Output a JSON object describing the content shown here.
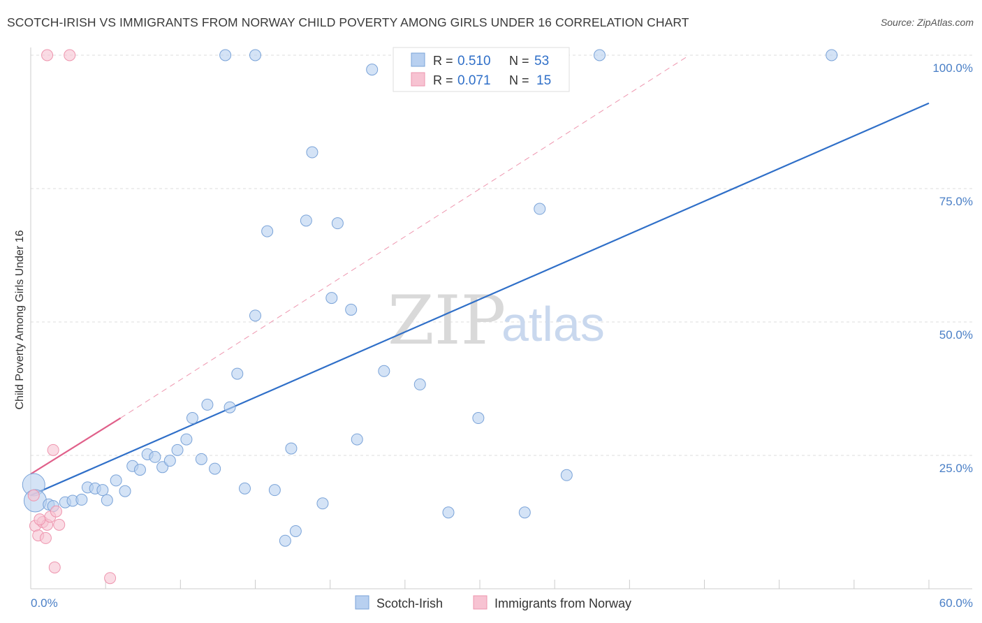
{
  "header": {
    "title": "SCOTCH-IRISH VS IMMIGRANTS FROM NORWAY CHILD POVERTY AMONG GIRLS UNDER 16 CORRELATION CHART",
    "source": "Source: ZipAtlas.com"
  },
  "watermark": {
    "zip": "ZIP",
    "atlas": "atlas"
  },
  "legend": {
    "r_label": "R =",
    "n_label": "N =",
    "rows": [
      {
        "r": "0.510",
        "n": "53"
      },
      {
        "r": "0.071",
        "n": "15"
      }
    ]
  },
  "bottom_legend": {
    "series1": "Scotch-Irish",
    "series2": "Immigrants from Norway"
  },
  "colors": {
    "blue": "#2f6fc8",
    "blue_fill": "#b8d0f0",
    "blue_stroke": "#7aa3d8",
    "pink": "#e0608a",
    "pink_fill": "#f7c3d2",
    "pink_stroke": "#ee95ae"
  },
  "chart_data": {
    "type": "scatter",
    "title": "SCOTCH-IRISH VS IMMIGRANTS FROM NORWAY CHILD POVERTY AMONG GIRLS UNDER 16 CORRELATION CHART",
    "xlabel": "",
    "ylabel": "Child Poverty Among Girls Under 16",
    "xlim": [
      0,
      60
    ],
    "ylim": [
      0,
      100
    ],
    "x_tick_labels": [
      "0.0%",
      "60.0%"
    ],
    "y_ticks": [
      25,
      50,
      75,
      100
    ],
    "y_tick_labels": [
      "25.0%",
      "50.0%",
      "75.0%",
      "100.0%"
    ],
    "series": [
      {
        "name": "Scotch-Irish",
        "r": 0.51,
        "n": 53,
        "points": [
          [
            0.2,
            19.5
          ],
          [
            0.3,
            16.5
          ],
          [
            1.2,
            15.8
          ],
          [
            2.3,
            16.2
          ],
          [
            2.8,
            16.5
          ],
          [
            3.4,
            16.7
          ],
          [
            3.8,
            19
          ],
          [
            4.3,
            18.8
          ],
          [
            4.8,
            18.5
          ],
          [
            5.1,
            16.6
          ],
          [
            5.7,
            20.3
          ],
          [
            6.3,
            18.3
          ],
          [
            6.8,
            23
          ],
          [
            7.3,
            22.3
          ],
          [
            7.8,
            25.2
          ],
          [
            8.3,
            24.7
          ],
          [
            8.8,
            22.8
          ],
          [
            9.3,
            24
          ],
          [
            9.8,
            26
          ],
          [
            10.4,
            28
          ],
          [
            10.8,
            32
          ],
          [
            11.4,
            24.3
          ],
          [
            11.8,
            34.5
          ],
          [
            12.3,
            22.5
          ],
          [
            13.3,
            34
          ],
          [
            13.8,
            40.3
          ],
          [
            14.3,
            18.8
          ],
          [
            15.0,
            51.2
          ],
          [
            15.8,
            67
          ],
          [
            16.3,
            18.5
          ],
          [
            17.0,
            9
          ],
          [
            17.4,
            26.3
          ],
          [
            17.7,
            10.8
          ],
          [
            18.4,
            69
          ],
          [
            18.8,
            81.8
          ],
          [
            19.5,
            16
          ],
          [
            20.1,
            54.5
          ],
          [
            20.5,
            68.5
          ],
          [
            21.4,
            52.3
          ],
          [
            21.8,
            28
          ],
          [
            22.8,
            97.3
          ],
          [
            23.6,
            40.8
          ],
          [
            26.0,
            38.3
          ],
          [
            27.9,
            14.3
          ],
          [
            29.9,
            32
          ],
          [
            33.0,
            14.3
          ],
          [
            34.0,
            71.2
          ],
          [
            35.8,
            21.3
          ],
          [
            13.0,
            100
          ],
          [
            15.0,
            100
          ],
          [
            38.0,
            100
          ],
          [
            53.5,
            100
          ],
          [
            1.5,
            15.5
          ]
        ],
        "trend": {
          "x": [
            0,
            60
          ],
          "y": [
            17.5,
            91
          ]
        }
      },
      {
        "name": "Immigrants from Norway",
        "r": 0.071,
        "n": 15,
        "points": [
          [
            0.2,
            17.5
          ],
          [
            0.3,
            11.8
          ],
          [
            0.5,
            10
          ],
          [
            0.8,
            12.5
          ],
          [
            1.0,
            9.5
          ],
          [
            1.1,
            12
          ],
          [
            1.3,
            13.5
          ],
          [
            1.5,
            26
          ],
          [
            1.7,
            14.5
          ],
          [
            1.9,
            12
          ],
          [
            1.6,
            4
          ],
          [
            5.3,
            2
          ],
          [
            1.1,
            100
          ],
          [
            2.6,
            100
          ],
          [
            0.6,
            13
          ]
        ],
        "trend": {
          "x": [
            0,
            6
          ],
          "y": [
            21.5,
            32
          ]
        },
        "extrapolation": {
          "x": [
            6,
            44
          ],
          "y": [
            32,
            100
          ]
        }
      }
    ]
  }
}
